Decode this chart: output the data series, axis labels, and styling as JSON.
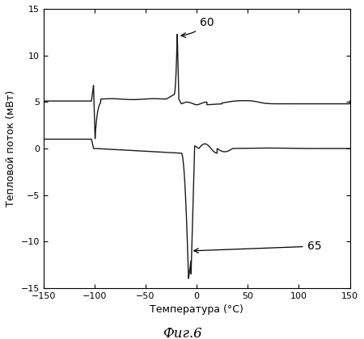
{
  "title": "",
  "xlabel": "Температура (°C)",
  "ylabel": "Тепловой поток (мВт)",
  "fig_title": "Фиг.6",
  "xlim": [
    -150,
    150
  ],
  "ylim": [
    -15,
    15
  ],
  "xticks": [
    -150,
    -100,
    -50,
    0,
    50,
    100,
    150
  ],
  "yticks": [
    -15,
    -10,
    -5,
    0,
    5,
    10,
    15
  ],
  "annotation_60_text": "60",
  "annotation_65_text": "65",
  "line_color": "#1a1a1a",
  "background_color": "#ffffff"
}
